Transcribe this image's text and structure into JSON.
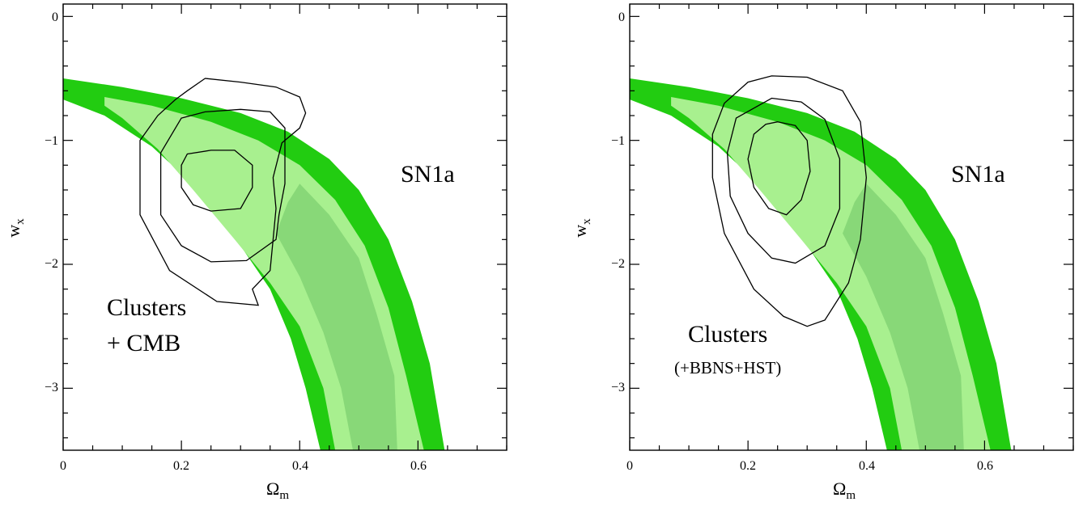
{
  "chart_data": [
    {
      "type": "contour",
      "xlabel": "Ω",
      "xlabel_sub": "m",
      "ylabel": "w",
      "ylabel_sub": "x",
      "xlim": [
        0,
        0.75
      ],
      "ylim": [
        -3.5,
        0.1
      ],
      "xticks": [
        0,
        0.2,
        0.4,
        0.6
      ],
      "xtick_labels": [
        "0",
        "0.2",
        "0.4",
        "0.6"
      ],
      "yticks": [
        0,
        -1,
        -2,
        -3
      ],
      "ytick_labels": [
        "0",
        "−1",
        "−2",
        "−3"
      ],
      "colors": {
        "sn_outer": "#22cc11",
        "sn_mid": "#a8f08f",
        "sn_inner": "#88d878"
      },
      "sn1a_band": {
        "label": "SN1a",
        "outer": {
          "top": [
            [
              0,
              -0.5
            ],
            [
              0.1,
              -0.57
            ],
            [
              0.2,
              -0.66
            ],
            [
              0.3,
              -0.78
            ],
            [
              0.38,
              -0.93
            ],
            [
              0.45,
              -1.15
            ],
            [
              0.5,
              -1.4
            ],
            [
              0.55,
              -1.8
            ],
            [
              0.59,
              -2.3
            ],
            [
              0.62,
              -2.8
            ],
            [
              0.645,
              -3.5
            ]
          ],
          "bottom": [
            [
              0.435,
              -3.5
            ],
            [
              0.41,
              -3.0
            ],
            [
              0.385,
              -2.6
            ],
            [
              0.35,
              -2.2
            ],
            [
              0.3,
              -1.85
            ],
            [
              0.23,
              -1.4
            ],
            [
              0.15,
              -1.05
            ],
            [
              0.07,
              -0.8
            ],
            [
              0,
              -0.67
            ]
          ]
        },
        "mid": {
          "top": [
            [
              0.07,
              -0.65
            ],
            [
              0.15,
              -0.72
            ],
            [
              0.25,
              -0.85
            ],
            [
              0.33,
              -1.0
            ],
            [
              0.4,
              -1.2
            ],
            [
              0.46,
              -1.48
            ],
            [
              0.51,
              -1.85
            ],
            [
              0.55,
              -2.35
            ],
            [
              0.58,
              -2.9
            ],
            [
              0.61,
              -3.5
            ]
          ],
          "bottom": [
            [
              0.46,
              -3.5
            ],
            [
              0.44,
              -3.0
            ],
            [
              0.4,
              -2.5
            ],
            [
              0.35,
              -2.15
            ],
            [
              0.29,
              -1.8
            ],
            [
              0.22,
              -1.4
            ],
            [
              0.16,
              -1.07
            ],
            [
              0.1,
              -0.82
            ],
            [
              0.07,
              -0.72
            ]
          ]
        },
        "inner": {
          "top": [
            [
              0.4,
              -1.35
            ],
            [
              0.45,
              -1.6
            ],
            [
              0.5,
              -1.95
            ],
            [
              0.53,
              -2.4
            ],
            [
              0.56,
              -2.9
            ],
            [
              0.565,
              -3.5
            ]
          ],
          "bottom": [
            [
              0.49,
              -3.5
            ],
            [
              0.47,
              -3.0
            ],
            [
              0.44,
              -2.55
            ],
            [
              0.4,
              -2.1
            ],
            [
              0.36,
              -1.75
            ],
            [
              0.38,
              -1.5
            ]
          ]
        }
      },
      "contours": [
        {
          "label": "Clusters",
          "label2": "+ CMB",
          "levels": [
            {
              "fill": "#1fa6ee",
              "points": [
                [
                  0.24,
                  -0.5
                ],
                [
                  0.3,
                  -0.53
                ],
                [
                  0.36,
                  -0.57
                ],
                [
                  0.4,
                  -0.65
                ],
                [
                  0.41,
                  -0.78
                ],
                [
                  0.4,
                  -0.9
                ],
                [
                  0.37,
                  -1.02
                ],
                [
                  0.355,
                  -1.3
                ],
                [
                  0.36,
                  -1.55
                ],
                [
                  0.355,
                  -1.8
                ],
                [
                  0.35,
                  -2.05
                ],
                [
                  0.32,
                  -2.2
                ],
                [
                  0.33,
                  -2.33
                ],
                [
                  0.26,
                  -2.3
                ],
                [
                  0.18,
                  -2.05
                ],
                [
                  0.13,
                  -1.6
                ],
                [
                  0.13,
                  -1.0
                ],
                [
                  0.16,
                  -0.8
                ],
                [
                  0.19,
                  -0.67
                ],
                [
                  0.21,
                  -0.6
                ]
              ]
            },
            {
              "fill": "#1f62e3",
              "points": [
                [
                  0.2,
                  -0.82
                ],
                [
                  0.24,
                  -0.77
                ],
                [
                  0.3,
                  -0.75
                ],
                [
                  0.35,
                  -0.77
                ],
                [
                  0.375,
                  -0.9
                ],
                [
                  0.375,
                  -1.35
                ],
                [
                  0.365,
                  -1.6
                ],
                [
                  0.36,
                  -1.8
                ],
                [
                  0.31,
                  -1.97
                ],
                [
                  0.25,
                  -1.98
                ],
                [
                  0.2,
                  -1.85
                ],
                [
                  0.165,
                  -1.6
                ],
                [
                  0.165,
                  -1.1
                ]
              ]
            },
            {
              "fill": "#8adcf6",
              "points": [
                [
                  0.21,
                  -1.11
                ],
                [
                  0.25,
                  -1.08
                ],
                [
                  0.29,
                  -1.08
                ],
                [
                  0.32,
                  -1.2
                ],
                [
                  0.32,
                  -1.38
                ],
                [
                  0.3,
                  -1.55
                ],
                [
                  0.25,
                  -1.57
                ],
                [
                  0.22,
                  -1.52
                ],
                [
                  0.2,
                  -1.38
                ],
                [
                  0.2,
                  -1.2
                ]
              ]
            }
          ]
        },
        {
          "label": "Clusters",
          "label2": "(+BBNS+HST)",
          "levels": [
            {
              "fill": "#fab73c",
              "points": [
                [
                  0.24,
                  -0.48
                ],
                [
                  0.3,
                  -0.49
                ],
                [
                  0.36,
                  -0.6
                ],
                [
                  0.39,
                  -0.85
                ],
                [
                  0.4,
                  -1.3
                ],
                [
                  0.39,
                  -1.8
                ],
                [
                  0.37,
                  -2.15
                ],
                [
                  0.33,
                  -2.45
                ],
                [
                  0.3,
                  -2.5
                ],
                [
                  0.26,
                  -2.42
                ],
                [
                  0.21,
                  -2.2
                ],
                [
                  0.16,
                  -1.75
                ],
                [
                  0.14,
                  -1.3
                ],
                [
                  0.14,
                  -0.95
                ],
                [
                  0.16,
                  -0.7
                ],
                [
                  0.2,
                  -0.53
                ]
              ]
            },
            {
              "fill": "#fcf232",
              "points": [
                [
                  0.24,
                  -0.66
                ],
                [
                  0.29,
                  -0.69
                ],
                [
                  0.33,
                  -0.83
                ],
                [
                  0.355,
                  -1.15
                ],
                [
                  0.355,
                  -1.55
                ],
                [
                  0.33,
                  -1.85
                ],
                [
                  0.28,
                  -1.99
                ],
                [
                  0.24,
                  -1.95
                ],
                [
                  0.2,
                  -1.75
                ],
                [
                  0.17,
                  -1.45
                ],
                [
                  0.165,
                  -1.1
                ],
                [
                  0.18,
                  -0.82
                ]
              ]
            },
            {
              "fill": "#f23b39",
              "points": [
                [
                  0.25,
                  -0.85
                ],
                [
                  0.28,
                  -0.88
                ],
                [
                  0.3,
                  -1.0
                ],
                [
                  0.305,
                  -1.25
                ],
                [
                  0.29,
                  -1.48
                ],
                [
                  0.265,
                  -1.6
                ],
                [
                  0.235,
                  -1.55
                ],
                [
                  0.21,
                  -1.38
                ],
                [
                  0.2,
                  -1.15
                ],
                [
                  0.21,
                  -0.95
                ],
                [
                  0.23,
                  -0.87
                ]
              ]
            }
          ]
        }
      ]
    }
  ]
}
